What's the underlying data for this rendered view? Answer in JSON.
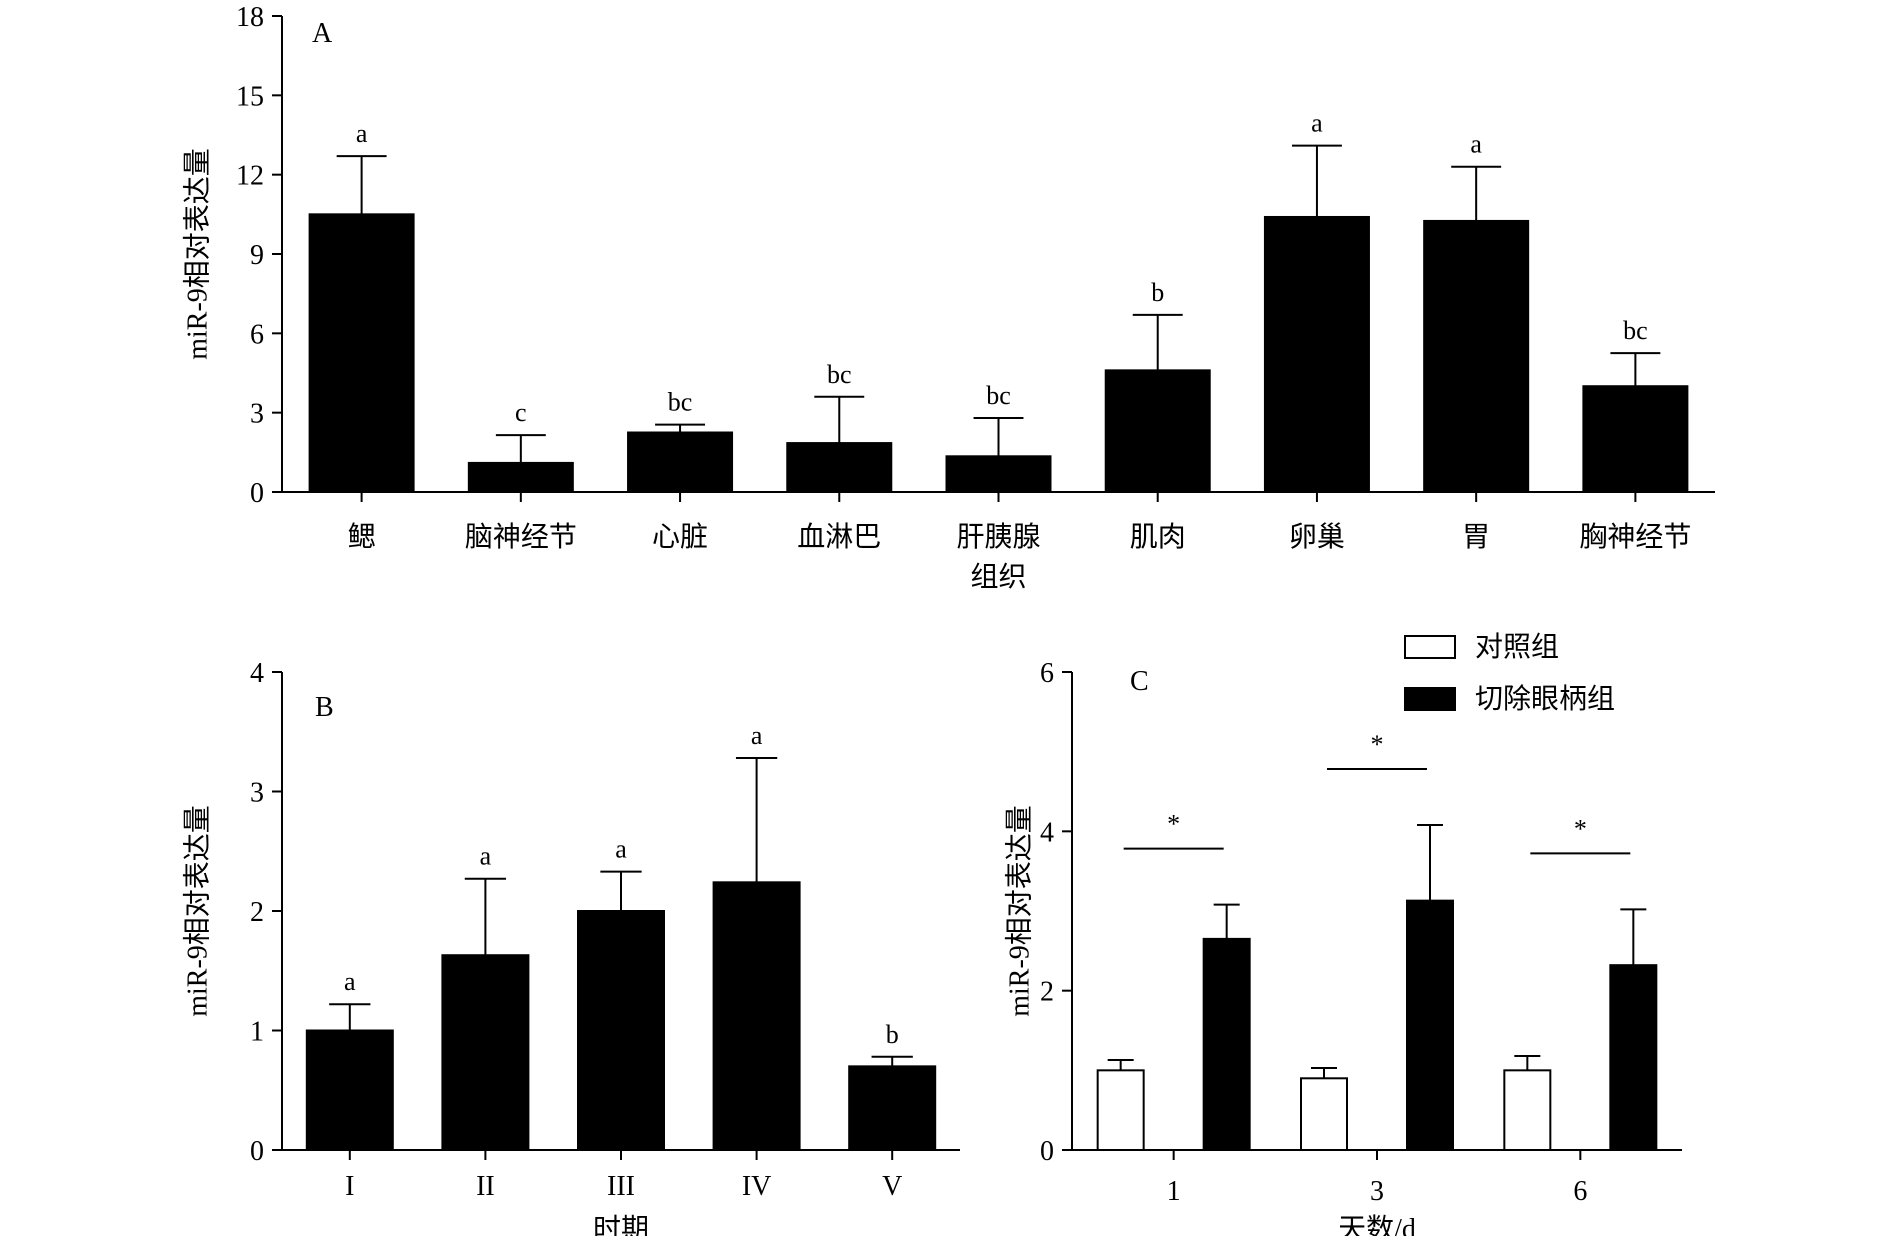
{
  "chart_data": [
    {
      "panel": "A",
      "type": "bar",
      "ylabel": "miR-9相对表达量",
      "xlabel": "",
      "ylim": [
        0,
        18
      ],
      "yticks": [
        "0",
        "3",
        "6",
        "9",
        "12",
        "15",
        "18"
      ],
      "categories": [
        [
          "鳃"
        ],
        [
          "脑神经节"
        ],
        [
          "心脏"
        ],
        [
          "血淋巴"
        ],
        [
          "肝胰腺",
          "组织"
        ],
        [
          "肌肉"
        ],
        [
          "卵巢"
        ],
        [
          "胃"
        ],
        [
          "胸神经节"
        ]
      ],
      "values": [
        10.5,
        1.1,
        2.25,
        1.85,
        1.35,
        4.6,
        10.4,
        10.25,
        4.0
      ],
      "errors": [
        2.2,
        1.05,
        0.3,
        1.75,
        1.45,
        2.1,
        2.7,
        2.05,
        1.25
      ],
      "significance": [
        "a",
        "c",
        "bc",
        "bc",
        "bc",
        "b",
        "a",
        "a",
        "bc"
      ],
      "color": "#000000"
    },
    {
      "panel": "B",
      "type": "bar",
      "ylabel": "miR-9相对表达量",
      "xlabel": "时期",
      "ylim": [
        0,
        4
      ],
      "yticks": [
        "0",
        "1",
        "2",
        "3",
        "4"
      ],
      "categories": [
        [
          "I"
        ],
        [
          "II"
        ],
        [
          "III"
        ],
        [
          "IV"
        ],
        [
          "V"
        ]
      ],
      "values": [
        1.0,
        1.63,
        2.0,
        2.24,
        0.7
      ],
      "errors": [
        0.22,
        0.64,
        0.33,
        1.04,
        0.08
      ],
      "significance": [
        "a",
        "a",
        "a",
        "a",
        "b"
      ],
      "color": "#000000"
    },
    {
      "panel": "C",
      "type": "bar",
      "ylabel": "miR-9相对表达量",
      "xlabel": "天数/d",
      "ylim": [
        0,
        6
      ],
      "yticks": [
        "0",
        "2",
        "4",
        "6"
      ],
      "categories": [
        "1",
        "3",
        "6"
      ],
      "series": [
        {
          "name": "对照组",
          "values": [
            1.0,
            0.9,
            1.0
          ],
          "errors": [
            0.13,
            0.13,
            0.18
          ],
          "color": "#ffffff"
        },
        {
          "name": "切除眼柄组",
          "values": [
            2.65,
            3.13,
            2.32
          ],
          "errors": [
            0.43,
            0.95,
            0.7
          ],
          "color": "#000000"
        }
      ],
      "significance": [
        "*",
        "*",
        "*"
      ],
      "legend_position": "top-right"
    }
  ]
}
